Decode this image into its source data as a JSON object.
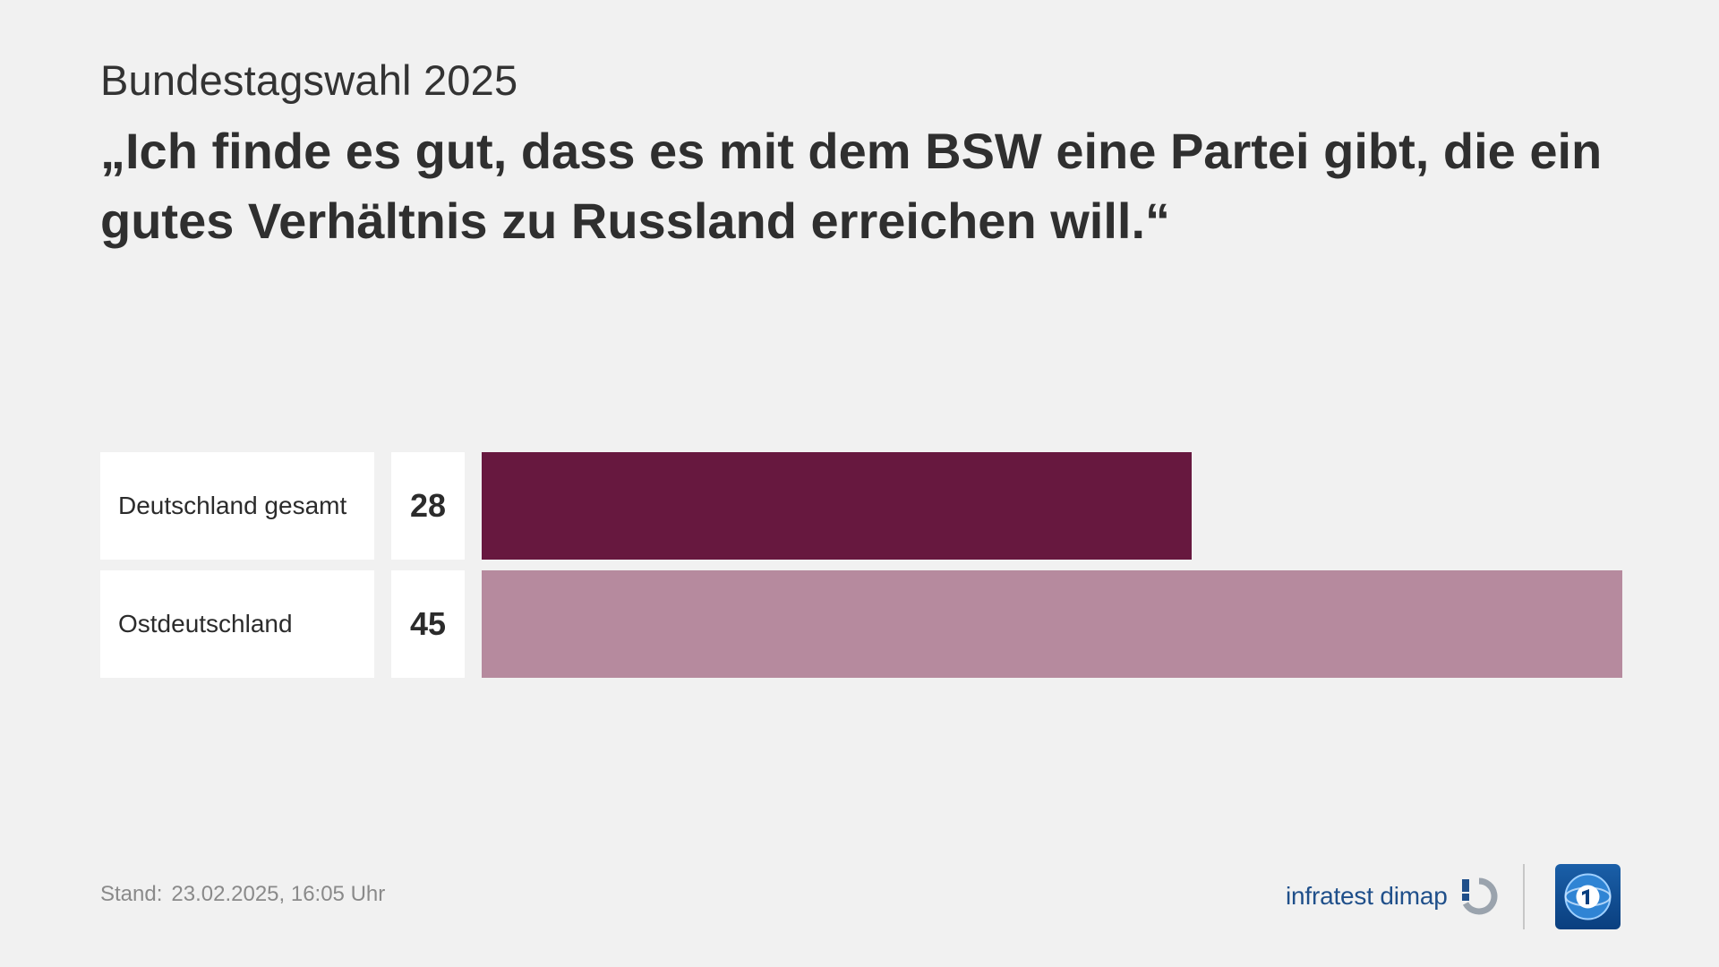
{
  "header": {
    "subtitle": "Bundestagswahl 2025",
    "title": "„Ich finde es gut, dass es mit dem BSW eine Partei gibt, die ein gutes Verhältnis zu Russland erreichen will.“"
  },
  "chart_data": {
    "type": "bar",
    "orientation": "horizontal",
    "categories": [
      "Deutschland gesamt",
      "Ostdeutschland"
    ],
    "values": [
      28,
      45
    ],
    "value_labels": [
      "28",
      "45"
    ],
    "colors": [
      "#67183f",
      "#b68a9e"
    ],
    "xlim": [
      0,
      45
    ],
    "grid": false,
    "legend": "none"
  },
  "footer": {
    "stand_label": "Stand:",
    "stand_value": "23.02.2025, 16:05 Uhr",
    "source_logo_text": "infratest dimap",
    "broadcaster_logo": "ard-das-erste-icon"
  },
  "colors": {
    "background": "#f1f1f1",
    "text": "#2f2f2f",
    "muted": "#8a8a8a",
    "brand_blue": "#1f4f8a"
  }
}
